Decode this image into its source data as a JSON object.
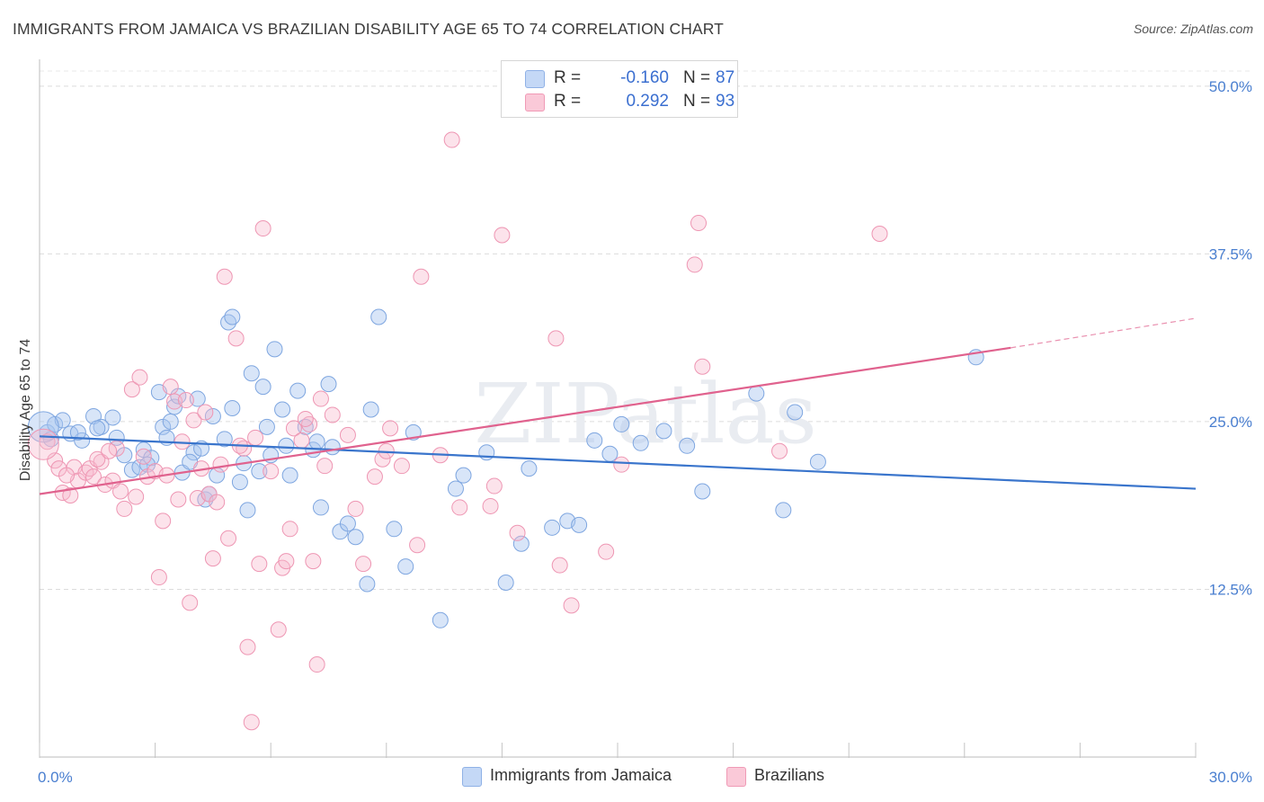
{
  "title": "IMMIGRANTS FROM JAMAICA VS BRAZILIAN DISABILITY AGE 65 TO 74 CORRELATION CHART",
  "source": "Source: ZipAtlas.com",
  "watermark": "ZIPatlas",
  "legend": {
    "rows": [
      {
        "r_label": "R =",
        "r_value": "-0.160",
        "n_label": "N =",
        "n_value": "87",
        "color": "#a9c6f0"
      },
      {
        "r_label": "R =",
        "r_value": "0.292",
        "n_label": "N =",
        "n_value": "93",
        "color": "#f7b8cc"
      }
    ]
  },
  "bottom_legend": [
    "Immigrants from Jamaica",
    "Brazilians"
  ],
  "chart_data": {
    "type": "scatter",
    "title": "IMMIGRANTS FROM JAMAICA VS BRAZILIAN DISABILITY AGE 65 TO 74 CORRELATION CHART",
    "xlabel": "",
    "ylabel": "Disability Age 65 to 74",
    "xlim": [
      0,
      30
    ],
    "ylim": [
      0,
      52
    ],
    "x_tick_labels": [
      "0.0%",
      "30.0%"
    ],
    "y_ticks": [
      12.5,
      25.0,
      37.5,
      50.0
    ],
    "y_tick_labels": [
      "12.5%",
      "25.0%",
      "37.5%",
      "50.0%"
    ],
    "grid": true,
    "series": [
      {
        "name": "Immigrants from Jamaica",
        "color": "#a9c6f0",
        "line_color": "#3a75cc",
        "trend": {
          "x": [
            0,
            30
          ],
          "y": [
            23.9,
            20.0
          ]
        },
        "points": [
          [
            0.2,
            24.2
          ],
          [
            0.4,
            24.8
          ],
          [
            0.6,
            25.1
          ],
          [
            0.8,
            24.1
          ],
          [
            1.1,
            23.6
          ],
          [
            1.4,
            25.4
          ],
          [
            1.6,
            24.6
          ],
          [
            1.9,
            25.3
          ],
          [
            2.2,
            22.5
          ],
          [
            2.4,
            21.4
          ],
          [
            2.7,
            22.9
          ],
          [
            2.9,
            22.3
          ],
          [
            3.1,
            27.2
          ],
          [
            3.2,
            24.6
          ],
          [
            3.3,
            23.8
          ],
          [
            3.5,
            26.1
          ],
          [
            3.6,
            26.9
          ],
          [
            3.7,
            21.2
          ],
          [
            4.0,
            22.7
          ],
          [
            4.1,
            26.7
          ],
          [
            4.3,
            19.2
          ],
          [
            4.5,
            25.4
          ],
          [
            4.6,
            21.0
          ],
          [
            4.8,
            23.7
          ],
          [
            4.9,
            32.4
          ],
          [
            5.0,
            32.8
          ],
          [
            5.2,
            20.5
          ],
          [
            5.4,
            18.4
          ],
          [
            5.5,
            28.6
          ],
          [
            5.7,
            21.3
          ],
          [
            5.8,
            27.6
          ],
          [
            5.9,
            24.6
          ],
          [
            6.1,
            30.4
          ],
          [
            6.3,
            25.9
          ],
          [
            6.5,
            21.0
          ],
          [
            6.7,
            27.3
          ],
          [
            6.9,
            24.6
          ],
          [
            7.1,
            22.9
          ],
          [
            7.3,
            18.6
          ],
          [
            7.5,
            27.8
          ],
          [
            7.6,
            23.1
          ],
          [
            7.8,
            16.8
          ],
          [
            8.0,
            17.4
          ],
          [
            8.2,
            16.4
          ],
          [
            8.5,
            12.9
          ],
          [
            8.6,
            25.9
          ],
          [
            8.8,
            32.8
          ],
          [
            9.2,
            17.0
          ],
          [
            9.5,
            14.2
          ],
          [
            9.7,
            24.2
          ],
          [
            10.4,
            10.2
          ],
          [
            10.8,
            20.0
          ],
          [
            11.0,
            21.0
          ],
          [
            11.6,
            22.7
          ],
          [
            12.1,
            13.0
          ],
          [
            12.5,
            15.9
          ],
          [
            13.3,
            17.1
          ],
          [
            13.7,
            17.6
          ],
          [
            14.4,
            23.6
          ],
          [
            14.8,
            22.6
          ],
          [
            15.1,
            24.8
          ],
          [
            15.6,
            23.4
          ],
          [
            16.2,
            24.3
          ],
          [
            16.8,
            23.2
          ],
          [
            17.2,
            19.8
          ],
          [
            18.6,
            27.1
          ],
          [
            19.6,
            25.7
          ],
          [
            19.3,
            18.4
          ],
          [
            20.2,
            22.0
          ],
          [
            24.3,
            29.8
          ],
          [
            1.0,
            24.2
          ],
          [
            2.0,
            23.8
          ],
          [
            2.6,
            21.6
          ],
          [
            3.4,
            25.0
          ],
          [
            4.2,
            23.0
          ],
          [
            5.0,
            26.0
          ],
          [
            6.0,
            22.5
          ],
          [
            7.2,
            23.5
          ],
          [
            0.3,
            23.7
          ],
          [
            1.5,
            24.5
          ],
          [
            2.8,
            21.8
          ],
          [
            3.9,
            22.0
          ],
          [
            4.4,
            19.6
          ],
          [
            5.3,
            21.9
          ],
          [
            6.4,
            23.2
          ],
          [
            12.7,
            21.5
          ],
          [
            14.0,
            17.3
          ]
        ],
        "big_point": [
          0.1,
          24.6
        ]
      },
      {
        "name": "Brazilians",
        "color": "#f7b8cc",
        "line_color": "#e0628e",
        "trend": {
          "x": [
            0,
            25.2
          ],
          "y": [
            19.6,
            30.5
          ]
        },
        "trend_dash": {
          "x": [
            25.2,
            30
          ],
          "y": [
            30.5,
            32.7
          ]
        },
        "points": [
          [
            0.2,
            23.5
          ],
          [
            0.4,
            22.1
          ],
          [
            0.5,
            21.5
          ],
          [
            0.6,
            19.7
          ],
          [
            0.8,
            19.5
          ],
          [
            0.9,
            21.6
          ],
          [
            1.0,
            20.6
          ],
          [
            1.2,
            21.2
          ],
          [
            1.3,
            21.5
          ],
          [
            1.4,
            20.9
          ],
          [
            1.6,
            22.0
          ],
          [
            1.7,
            20.3
          ],
          [
            1.9,
            20.6
          ],
          [
            2.0,
            23.0
          ],
          [
            2.2,
            18.5
          ],
          [
            2.4,
            27.4
          ],
          [
            2.5,
            19.4
          ],
          [
            2.6,
            28.3
          ],
          [
            2.8,
            20.9
          ],
          [
            3.0,
            21.3
          ],
          [
            3.1,
            13.4
          ],
          [
            3.2,
            17.6
          ],
          [
            3.4,
            27.6
          ],
          [
            3.5,
            26.5
          ],
          [
            3.6,
            19.2
          ],
          [
            3.8,
            26.6
          ],
          [
            3.9,
            11.5
          ],
          [
            4.0,
            25.1
          ],
          [
            4.1,
            19.3
          ],
          [
            4.3,
            25.7
          ],
          [
            4.4,
            19.6
          ],
          [
            4.5,
            14.8
          ],
          [
            4.6,
            19.0
          ],
          [
            4.8,
            35.8
          ],
          [
            4.9,
            16.3
          ],
          [
            5.1,
            31.2
          ],
          [
            5.3,
            23.0
          ],
          [
            5.4,
            8.2
          ],
          [
            5.6,
            23.8
          ],
          [
            5.7,
            14.4
          ],
          [
            5.8,
            39.4
          ],
          [
            6.0,
            21.3
          ],
          [
            6.2,
            9.5
          ],
          [
            6.3,
            14.1
          ],
          [
            6.4,
            14.6
          ],
          [
            6.5,
            17.0
          ],
          [
            6.6,
            24.5
          ],
          [
            6.8,
            23.6
          ],
          [
            7.0,
            24.8
          ],
          [
            7.1,
            14.6
          ],
          [
            7.2,
            6.9
          ],
          [
            7.3,
            26.7
          ],
          [
            7.4,
            21.7
          ],
          [
            7.6,
            25.5
          ],
          [
            8.2,
            18.5
          ],
          [
            8.4,
            14.4
          ],
          [
            8.7,
            20.9
          ],
          [
            8.9,
            22.2
          ],
          [
            9.0,
            22.8
          ],
          [
            9.1,
            24.5
          ],
          [
            9.4,
            21.7
          ],
          [
            9.8,
            15.8
          ],
          [
            9.9,
            35.8
          ],
          [
            10.4,
            22.5
          ],
          [
            10.7,
            46.0
          ],
          [
            10.9,
            18.6
          ],
          [
            11.7,
            18.7
          ],
          [
            11.8,
            20.2
          ],
          [
            12.0,
            38.9
          ],
          [
            12.4,
            16.7
          ],
          [
            13.4,
            31.2
          ],
          [
            13.5,
            14.3
          ],
          [
            13.8,
            11.3
          ],
          [
            14.7,
            15.3
          ],
          [
            15.1,
            21.8
          ],
          [
            17.0,
            36.7
          ],
          [
            17.2,
            29.1
          ],
          [
            17.1,
            39.8
          ],
          [
            19.2,
            22.8
          ],
          [
            21.8,
            39.0
          ],
          [
            1.5,
            22.2
          ],
          [
            2.7,
            22.4
          ],
          [
            3.3,
            21.0
          ],
          [
            4.2,
            21.5
          ],
          [
            5.2,
            23.2
          ],
          [
            6.9,
            25.2
          ],
          [
            8.0,
            24.0
          ],
          [
            2.1,
            19.8
          ],
          [
            0.7,
            21.0
          ],
          [
            1.8,
            22.8
          ],
          [
            3.7,
            23.5
          ],
          [
            4.7,
            21.8
          ],
          [
            5.5,
            2.6
          ]
        ],
        "big_point": [
          0.1,
          23.3
        ]
      }
    ]
  }
}
